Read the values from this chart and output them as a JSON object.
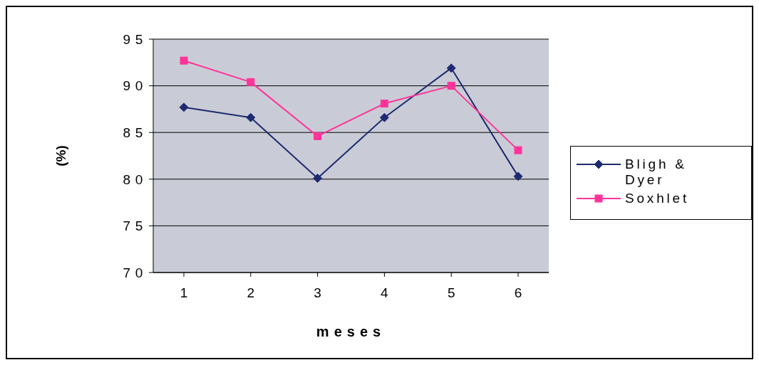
{
  "chart_data": {
    "type": "line",
    "xlabel": "meses",
    "ylabel": "(%)",
    "categories": [
      "1",
      "2",
      "3",
      "4",
      "5",
      "6"
    ],
    "series": [
      {
        "name": "Bligh & Dyer",
        "color": "#1f2a70",
        "marker": "diamond",
        "values": [
          87.7,
          86.6,
          80.1,
          86.6,
          91.9,
          80.3
        ]
      },
      {
        "name": "Soxhlet",
        "color": "#ff3399",
        "marker": "square",
        "values": [
          92.7,
          90.4,
          84.6,
          88.1,
          90.0,
          83.1
        ]
      }
    ],
    "ylim": [
      70,
      95
    ],
    "yticks": [
      70,
      75,
      80,
      85,
      90,
      95
    ],
    "grid": "y",
    "legend": "right"
  }
}
